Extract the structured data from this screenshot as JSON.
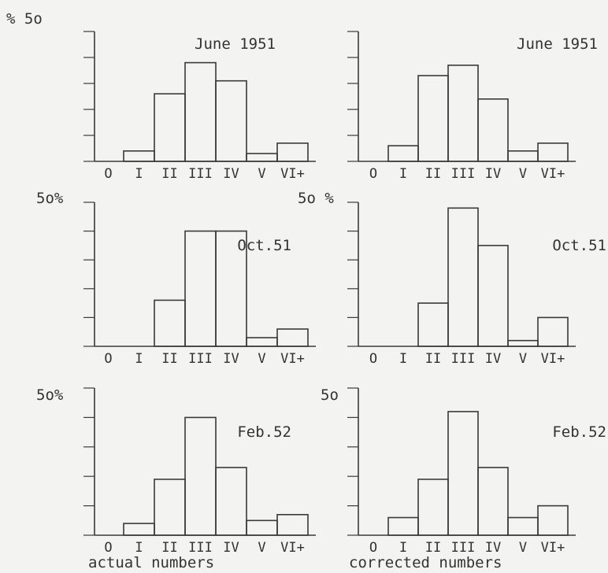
{
  "figure": {
    "captions": [
      "actual numbers",
      "corrected numbers"
    ]
  },
  "chart_data": [
    {
      "type": "bar",
      "panel": "top-left",
      "title": "June 1951",
      "ylabel": "% 5o",
      "ylim": [
        0,
        50
      ],
      "categories": [
        "O",
        "I",
        "II",
        "III",
        "IV",
        "V",
        "VI+"
      ],
      "values": [
        0,
        4,
        26,
        38,
        31,
        3,
        7
      ]
    },
    {
      "type": "bar",
      "panel": "top-right",
      "title": "June 1951",
      "ylabel": "",
      "ylim": [
        0,
        50
      ],
      "categories": [
        "O",
        "I",
        "II",
        "III",
        "IV",
        "V",
        "VI+"
      ],
      "values": [
        0,
        6,
        33,
        37,
        24,
        4,
        7
      ]
    },
    {
      "type": "bar",
      "panel": "middle-left",
      "title": "Oct.51",
      "ylabel": "5o%",
      "ylim": [
        0,
        50
      ],
      "categories": [
        "O",
        "I",
        "II",
        "III",
        "IV",
        "V",
        "VI+"
      ],
      "values": [
        0,
        0,
        16,
        40,
        40,
        3,
        6
      ]
    },
    {
      "type": "bar",
      "panel": "middle-right",
      "title": "Oct.51",
      "ylabel": "5o %",
      "ylim": [
        0,
        50
      ],
      "categories": [
        "O",
        "I",
        "II",
        "III",
        "IV",
        "V",
        "VI+"
      ],
      "values": [
        0,
        0,
        15,
        48,
        35,
        2,
        10
      ]
    },
    {
      "type": "bar",
      "panel": "bottom-left",
      "title": "Feb.52",
      "ylabel": "5o%",
      "ylim": [
        0,
        50
      ],
      "categories": [
        "O",
        "I",
        "II",
        "III",
        "IV",
        "V",
        "VI+"
      ],
      "values": [
        0,
        4,
        19,
        40,
        23,
        5,
        7
      ]
    },
    {
      "type": "bar",
      "panel": "bottom-right",
      "title": "Feb.52",
      "ylabel": "5o",
      "ylim": [
        0,
        50
      ],
      "categories": [
        "O",
        "I",
        "II",
        "III",
        "IV",
        "V",
        "VI+"
      ],
      "values": [
        0,
        6,
        19,
        42,
        23,
        6,
        10
      ]
    }
  ]
}
